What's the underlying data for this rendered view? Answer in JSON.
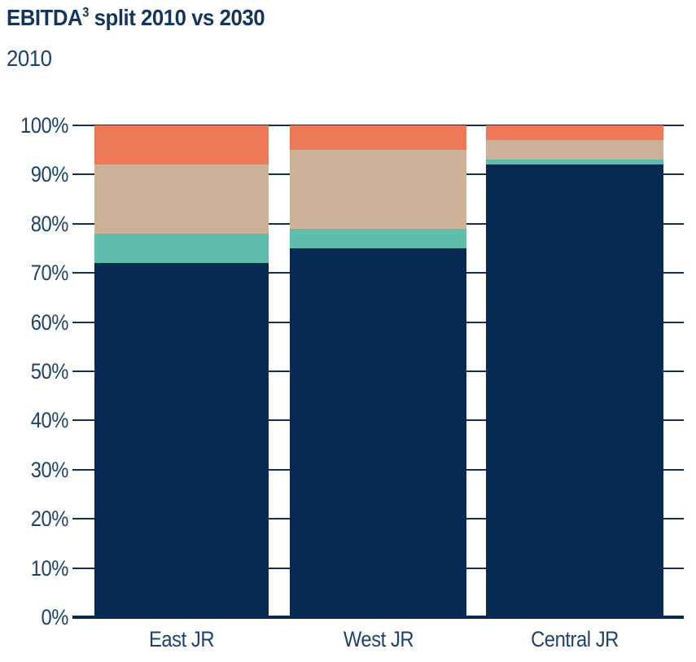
{
  "page": {
    "title": {
      "prefix": "EBITDA",
      "superscript": "3",
      "suffix": " split 2010 vs 2030"
    },
    "subtitle": "2010"
  },
  "chart_data": {
    "type": "bar",
    "stacked": true,
    "percent_stacked": true,
    "title": "EBITDA³ split 2010 vs 2030",
    "subtitle": "2010",
    "categories": [
      "East JR",
      "West JR",
      "Central JR"
    ],
    "series": [
      {
        "name": "navy-segment",
        "color": "#072A52",
        "values": [
          72,
          75,
          92
        ]
      },
      {
        "name": "teal-segment",
        "color": "#60BDAB",
        "values": [
          6,
          4,
          1
        ]
      },
      {
        "name": "tan-segment",
        "color": "#CAB198",
        "values": [
          14,
          16,
          4
        ]
      },
      {
        "name": "orange-segment",
        "color": "#EE7958",
        "values": [
          8,
          5,
          3
        ]
      }
    ],
    "y_ticks": [
      "0%",
      "10%",
      "20%",
      "30%",
      "40%",
      "50%",
      "60%",
      "70%",
      "80%",
      "90%",
      "100%"
    ],
    "ylim": [
      0,
      100
    ],
    "grid": true,
    "legend": "none"
  },
  "colors": {
    "title_text": "#14355F",
    "axis_text": "#1D426E",
    "gridline": "#0F3156",
    "baseline": "#072A52",
    "background": "#FFFFFF"
  }
}
